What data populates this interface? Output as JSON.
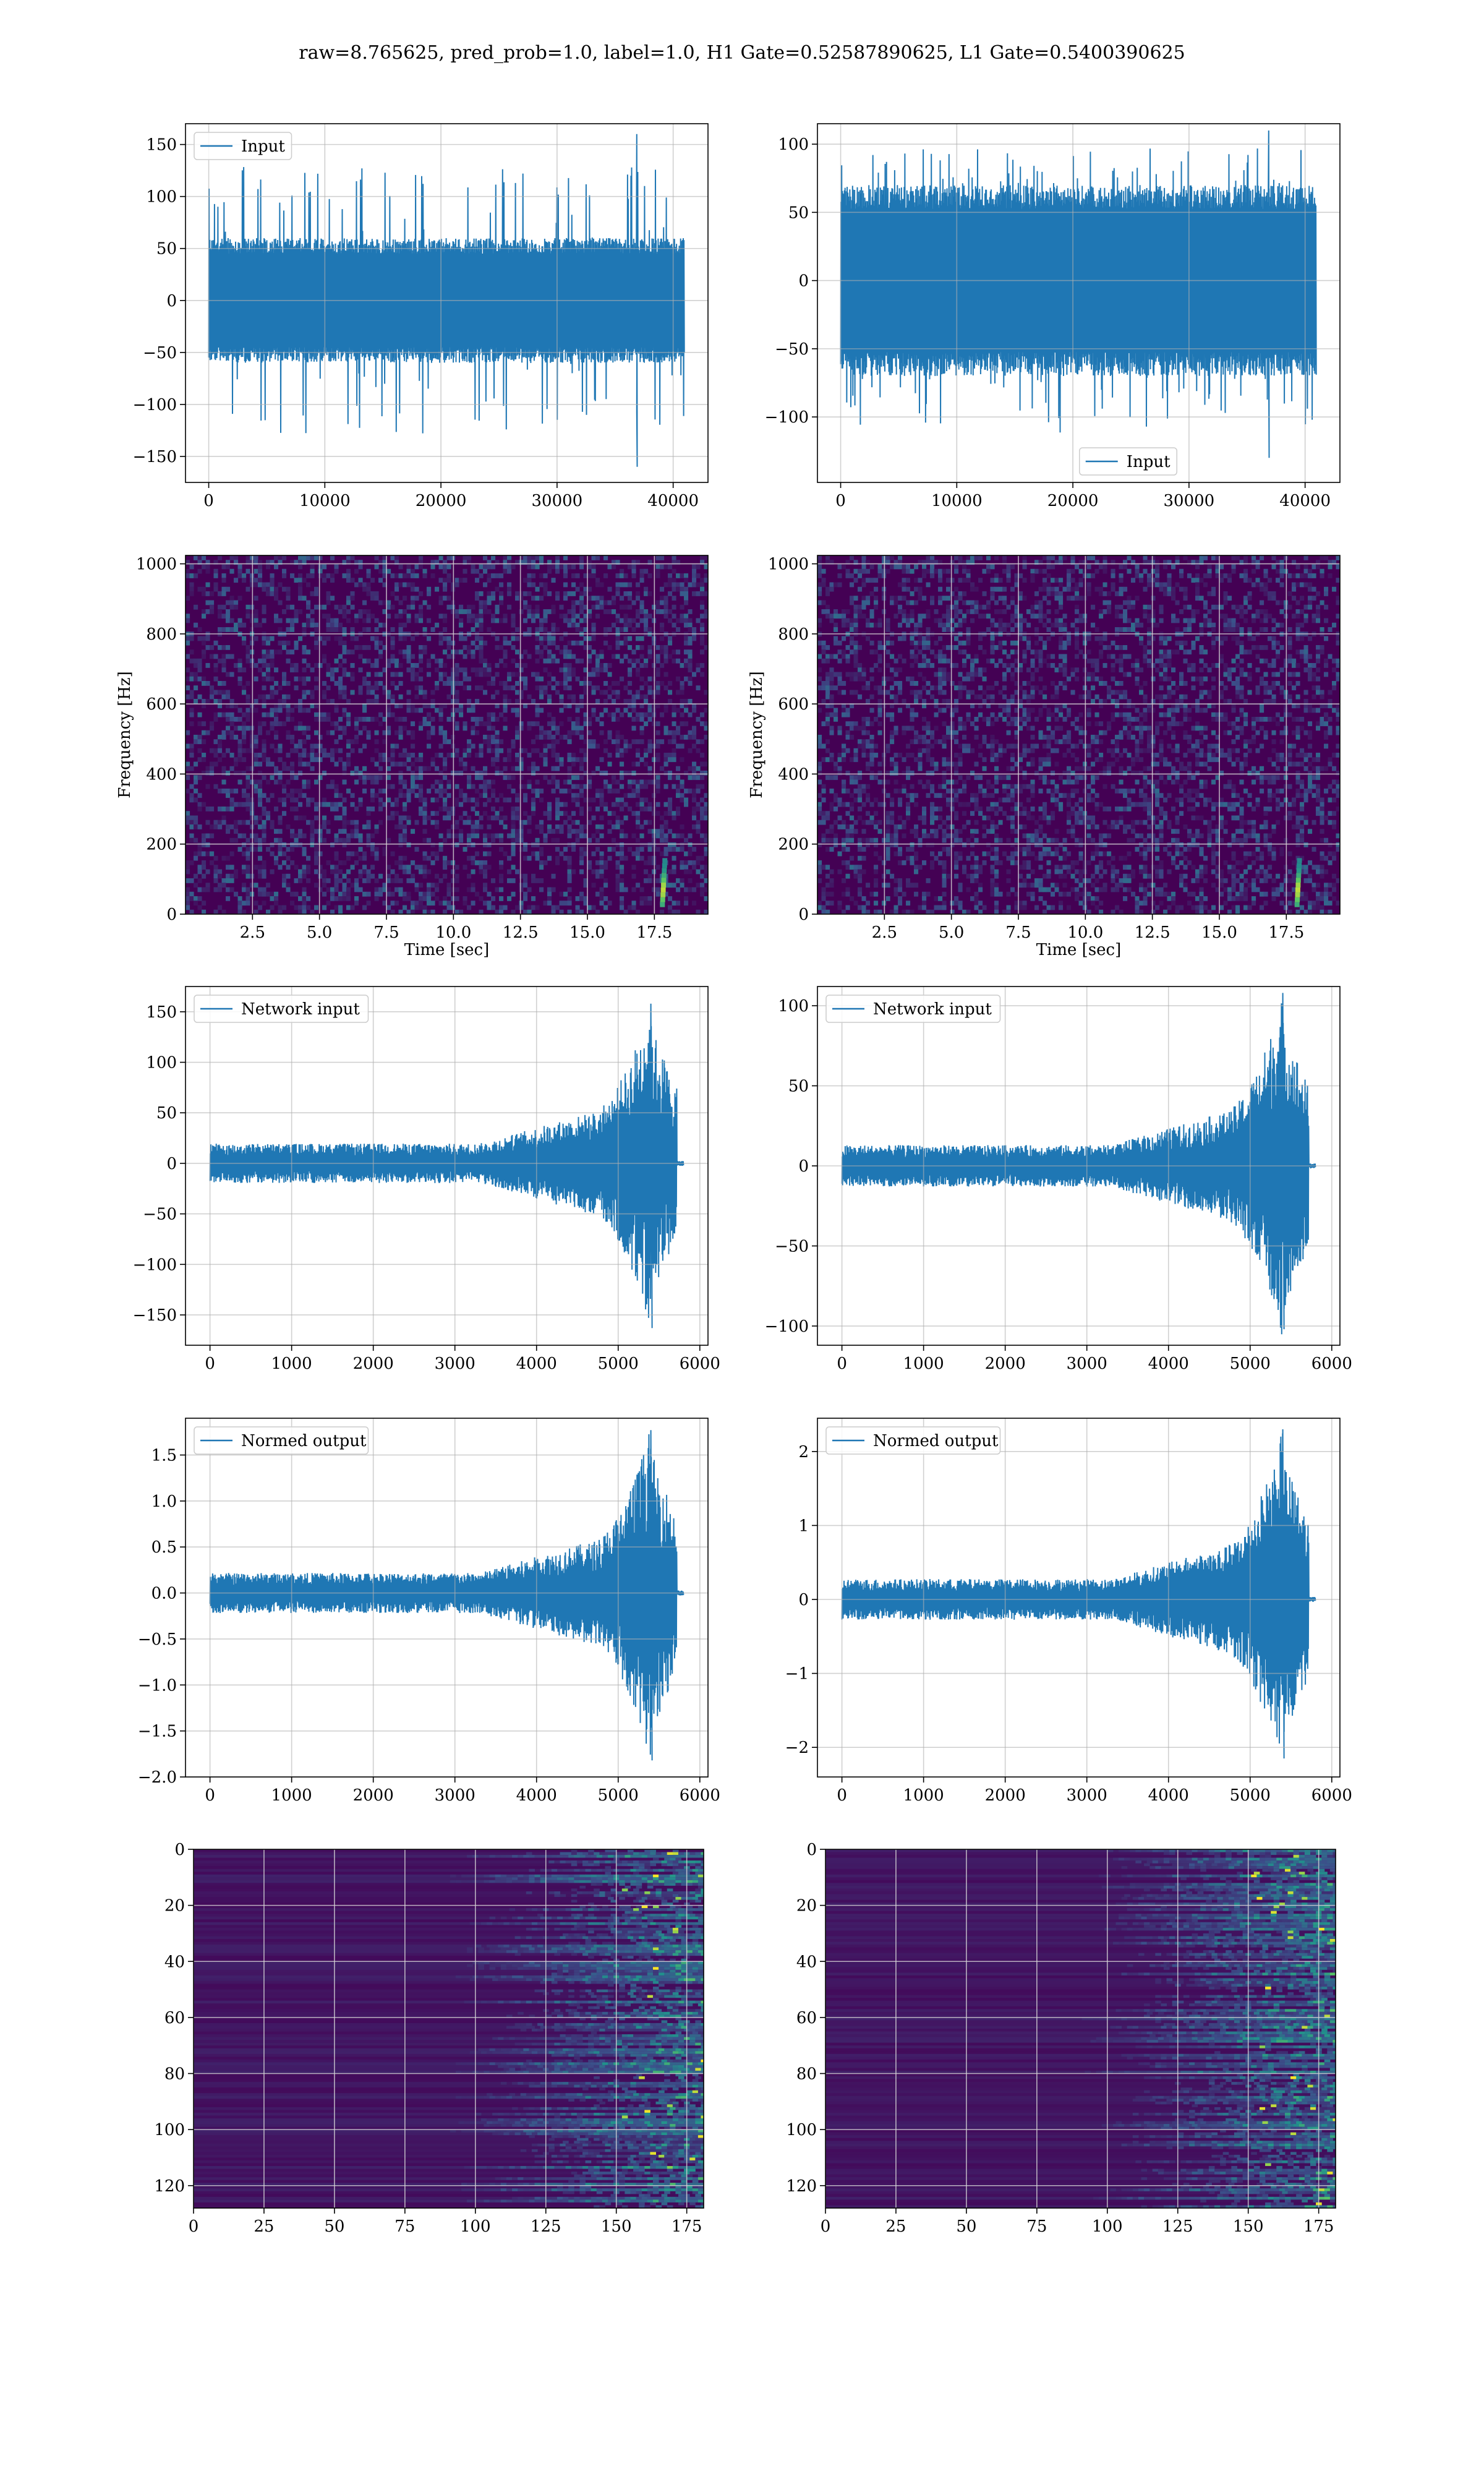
{
  "figure": {
    "title": "raw=8.765625, pred_prob=1.0, label=1.0, H1 Gate=0.52587890625, L1 Gate=0.5400390625"
  },
  "colors": {
    "line": "#1f77b4",
    "grid": "#b0b0b0",
    "viridis_dark": "#440154",
    "viridis_mid": "#21918c",
    "viridis_bright": "#fde725"
  },
  "chart_data": [
    {
      "id": "h1-input",
      "type": "line",
      "series": [
        {
          "name": "Input"
        }
      ],
      "legend": "upper-left",
      "xlim": [
        -2000,
        43000
      ],
      "ylim": [
        -175,
        170
      ],
      "xticks": [
        0,
        10000,
        20000,
        30000,
        40000
      ],
      "yticks": [
        -150,
        -100,
        -50,
        0,
        50,
        100,
        150
      ],
      "xlabel": "",
      "ylabel": "",
      "x_range": [
        0,
        40960
      ],
      "amplitude_band": [
        -60,
        60
      ],
      "peak_max": 160,
      "peak_min": -160
    },
    {
      "id": "l1-input",
      "type": "line",
      "series": [
        {
          "name": "Input"
        }
      ],
      "legend": "lower-center",
      "xlim": [
        -2000,
        43000
      ],
      "ylim": [
        -148,
        115
      ],
      "xticks": [
        0,
        10000,
        20000,
        30000,
        40000
      ],
      "yticks": [
        -100,
        -50,
        0,
        50,
        100
      ],
      "xlabel": "",
      "ylabel": "",
      "x_range": [
        0,
        40960
      ],
      "amplitude_band": [
        -70,
        70
      ],
      "peak_max": 110,
      "peak_min": -130
    },
    {
      "id": "h1-spectrogram",
      "type": "heatmap",
      "xlim": [
        0,
        19.5
      ],
      "ylim": [
        0,
        1024
      ],
      "xticks": [
        2.5,
        5.0,
        7.5,
        10.0,
        12.5,
        15.0,
        17.5
      ],
      "yticks": [
        0,
        200,
        400,
        600,
        800,
        1000
      ],
      "xlabel": "Time [sec]",
      "ylabel": "Frequency [Hz]",
      "colormap": "viridis",
      "bright_feature_x": 17.8
    },
    {
      "id": "l1-spectrogram",
      "type": "heatmap",
      "xlim": [
        0,
        19.5
      ],
      "ylim": [
        0,
        1024
      ],
      "xticks": [
        2.5,
        5.0,
        7.5,
        10.0,
        12.5,
        15.0,
        17.5
      ],
      "yticks": [
        0,
        200,
        400,
        600,
        800,
        1000
      ],
      "xlabel": "Time [sec]",
      "ylabel": "Frequency [Hz]",
      "colormap": "viridis",
      "bright_feature_x": 17.9
    },
    {
      "id": "h1-network-input",
      "type": "line",
      "series": [
        {
          "name": "Network input"
        }
      ],
      "legend": "upper-left",
      "xlim": [
        -300,
        6100
      ],
      "ylim": [
        -180,
        175
      ],
      "xticks": [
        0,
        1000,
        2000,
        3000,
        4000,
        5000,
        6000
      ],
      "yticks": [
        -150,
        -100,
        -50,
        0,
        50,
        100,
        150
      ],
      "xlabel": "",
      "ylabel": "",
      "x_range": [
        0,
        5800
      ],
      "peak_max": 158,
      "peak_min": -163
    },
    {
      "id": "l1-network-input",
      "type": "line",
      "series": [
        {
          "name": "Network input"
        }
      ],
      "legend": "upper-left",
      "xlim": [
        -300,
        6100
      ],
      "ylim": [
        -112,
        112
      ],
      "xticks": [
        0,
        1000,
        2000,
        3000,
        4000,
        5000,
        6000
      ],
      "yticks": [
        -100,
        -50,
        0,
        50,
        100
      ],
      "xlabel": "",
      "ylabel": "",
      "x_range": [
        0,
        5800
      ],
      "peak_max": 108,
      "peak_min": -102
    },
    {
      "id": "h1-normed-output",
      "type": "line",
      "series": [
        {
          "name": "Normed output"
        }
      ],
      "legend": "upper-left",
      "xlim": [
        -300,
        6100
      ],
      "ylim": [
        -2.0,
        1.9
      ],
      "xticks": [
        0,
        1000,
        2000,
        3000,
        4000,
        5000,
        6000
      ],
      "yticks": [
        -2.0,
        -1.5,
        -1.0,
        -0.5,
        0.0,
        0.5,
        1.0,
        1.5
      ],
      "xlabel": "",
      "ylabel": "",
      "x_range": [
        0,
        5800
      ],
      "peak_max": 1.77,
      "peak_min": -1.82
    },
    {
      "id": "l1-normed-output",
      "type": "line",
      "series": [
        {
          "name": "Normed output"
        }
      ],
      "legend": "upper-left",
      "xlim": [
        -300,
        6100
      ],
      "ylim": [
        -2.4,
        2.45
      ],
      "xticks": [
        0,
        1000,
        2000,
        3000,
        4000,
        5000,
        6000
      ],
      "yticks": [
        -2,
        -1,
        0,
        1,
        2
      ],
      "xlabel": "",
      "ylabel": "",
      "x_range": [
        0,
        5800
      ],
      "peak_max": 2.3,
      "peak_min": -2.15
    },
    {
      "id": "h1-activation-map",
      "type": "heatmap",
      "xlim": [
        0,
        181
      ],
      "ylim": [
        128,
        0
      ],
      "xticks": [
        0,
        25,
        50,
        75,
        100,
        125,
        150,
        175
      ],
      "yticks": [
        0,
        20,
        40,
        60,
        80,
        100,
        120
      ],
      "xlabel": "",
      "ylabel": "",
      "colormap": "viridis",
      "activity_onset_x": 125
    },
    {
      "id": "l1-activation-map",
      "type": "heatmap",
      "xlim": [
        0,
        181
      ],
      "ylim": [
        128,
        0
      ],
      "xticks": [
        0,
        25,
        50,
        75,
        100,
        125,
        150,
        175
      ],
      "yticks": [
        0,
        20,
        40,
        60,
        80,
        100,
        120
      ],
      "xlabel": "",
      "ylabel": "",
      "colormap": "viridis",
      "activity_onset_x": 125
    }
  ]
}
